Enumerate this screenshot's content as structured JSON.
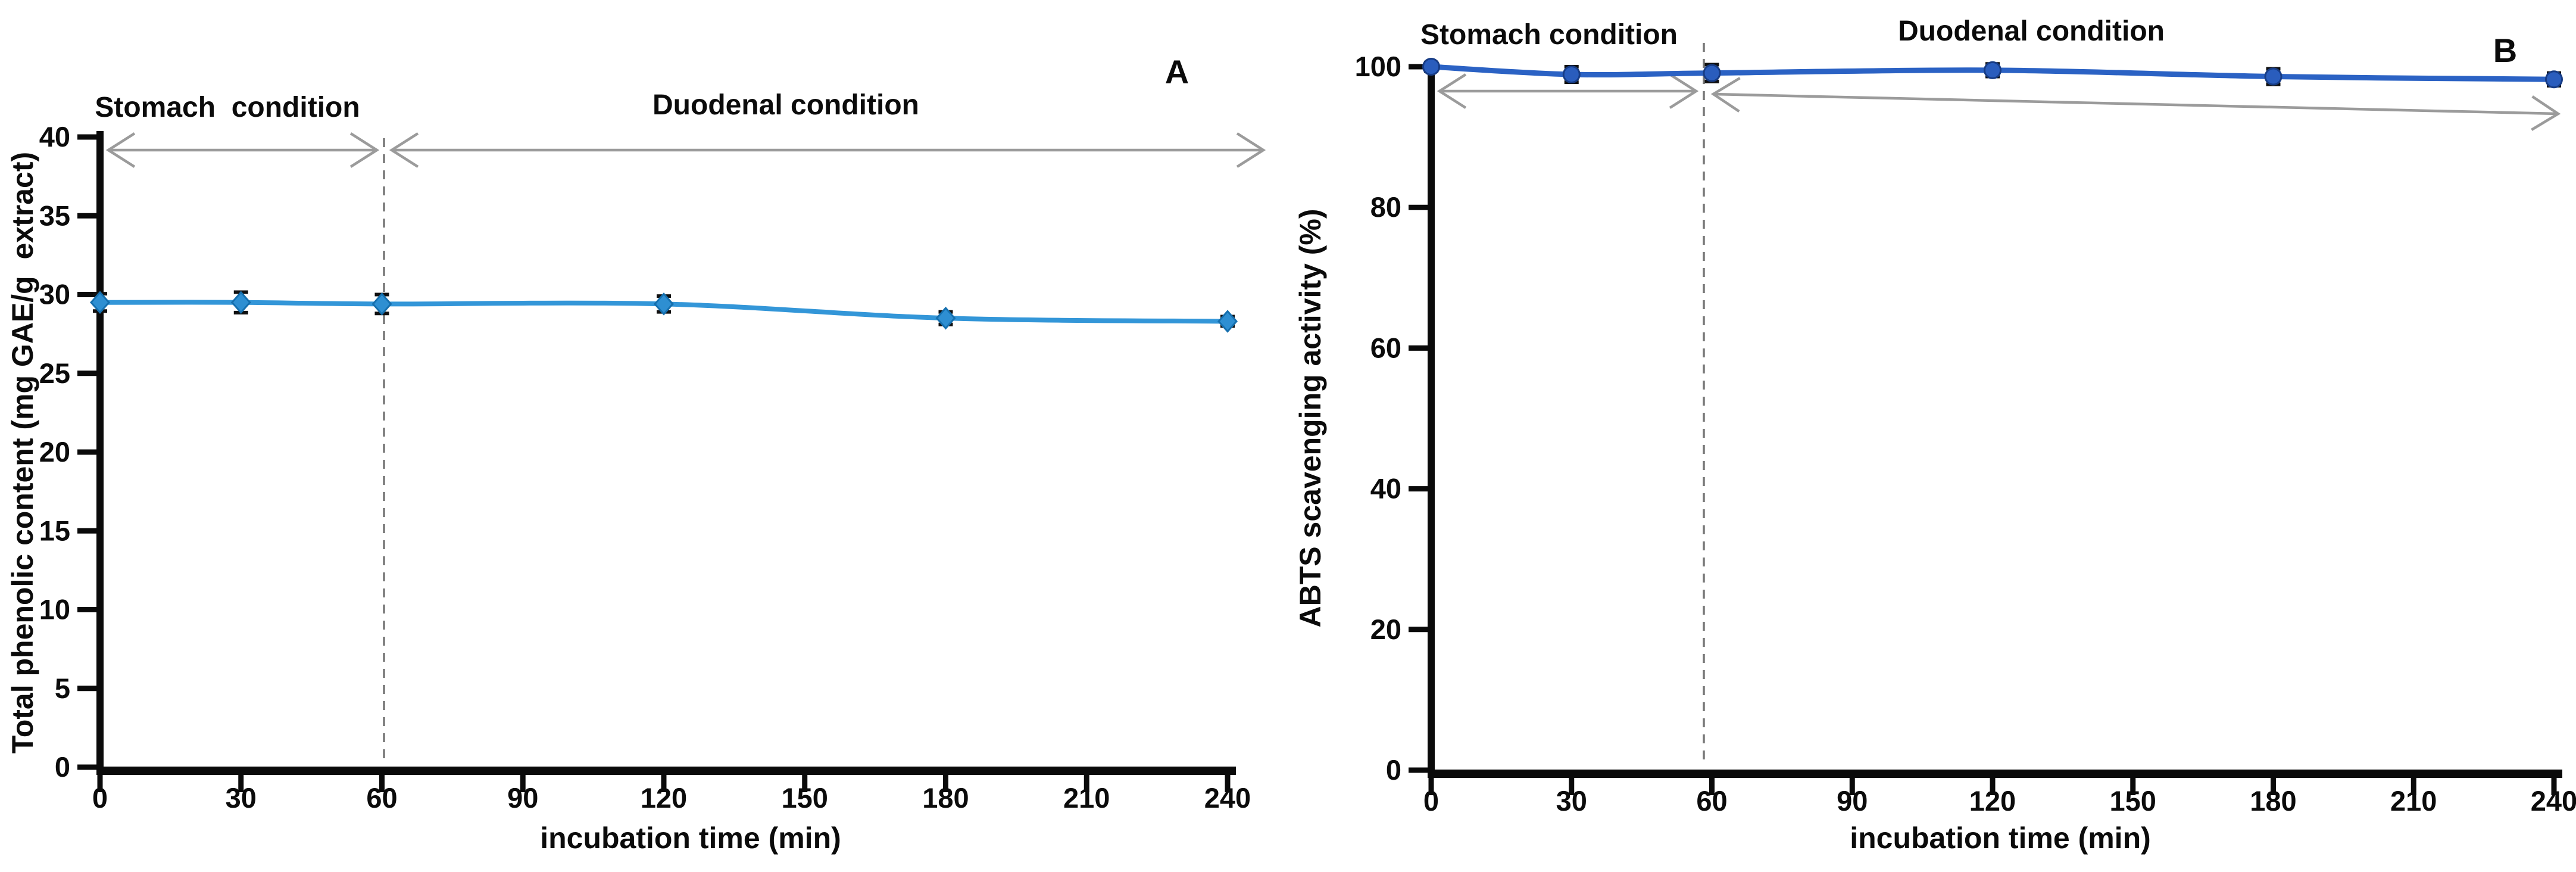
{
  "figure": {
    "background": "#ffffff"
  },
  "chart_data": [
    {
      "panel": "A",
      "type": "line",
      "title": "",
      "xlabel": "incubation time (min)",
      "ylabel": "Total phenolic content (mg GAE/g  extract)",
      "x": [
        0,
        30,
        60,
        120,
        180,
        240
      ],
      "y": [
        29.5,
        29.5,
        29.4,
        29.4,
        28.5,
        28.3
      ],
      "yerr": [
        0.55,
        0.65,
        0.6,
        0.5,
        0.4,
        0.3
      ],
      "xticks": [
        0,
        30,
        60,
        90,
        120,
        150,
        180,
        210,
        240
      ],
      "yticks": [
        0,
        5,
        10,
        15,
        20,
        25,
        30,
        35,
        40
      ],
      "xlim": [
        0,
        240
      ],
      "ylim": [
        0,
        40
      ],
      "grid": false,
      "legend": "none",
      "marker": "diamond",
      "line_color": "#3396d8",
      "marker_color": "#2e8fd2",
      "marker_edge": "#156fae",
      "error_color": "#111111",
      "divider_at_min": 60,
      "arrow_color": "#9b9b9b",
      "regions": [
        {
          "label": "Stomach  condition",
          "from_min": 0,
          "to_min": 60
        },
        {
          "label": "Duodenal condition",
          "from_min": 60,
          "to_min": 240
        }
      ]
    },
    {
      "panel": "B",
      "type": "line",
      "title": "",
      "xlabel": "incubation time (min)",
      "ylabel": "ABTS scavenging activity (%)",
      "x": [
        0,
        30,
        60,
        120,
        180,
        240
      ],
      "y": [
        100,
        98.9,
        99.1,
        99.5,
        98.6,
        98.2
      ],
      "yerr": [
        0.6,
        1.1,
        1.2,
        0.9,
        1.1,
        0.9
      ],
      "xticks": [
        0,
        30,
        60,
        90,
        120,
        150,
        180,
        210,
        240
      ],
      "yticks": [
        0,
        20,
        40,
        60,
        80,
        100
      ],
      "xlim": [
        0,
        240
      ],
      "ylim": [
        0,
        100
      ],
      "grid": false,
      "legend": "none",
      "marker": "circle",
      "line_color": "#2b62c4",
      "marker_color": "#2a5dbd",
      "marker_edge": "#173c85",
      "error_color": "#111111",
      "divider_at_min": 60,
      "arrow_color": "#9b9b9b",
      "regions": [
        {
          "label": "Stomach condition",
          "from_min": 0,
          "to_min": 60
        },
        {
          "label": "Duodenal condition",
          "from_min": 60,
          "to_min": 240
        }
      ]
    }
  ]
}
